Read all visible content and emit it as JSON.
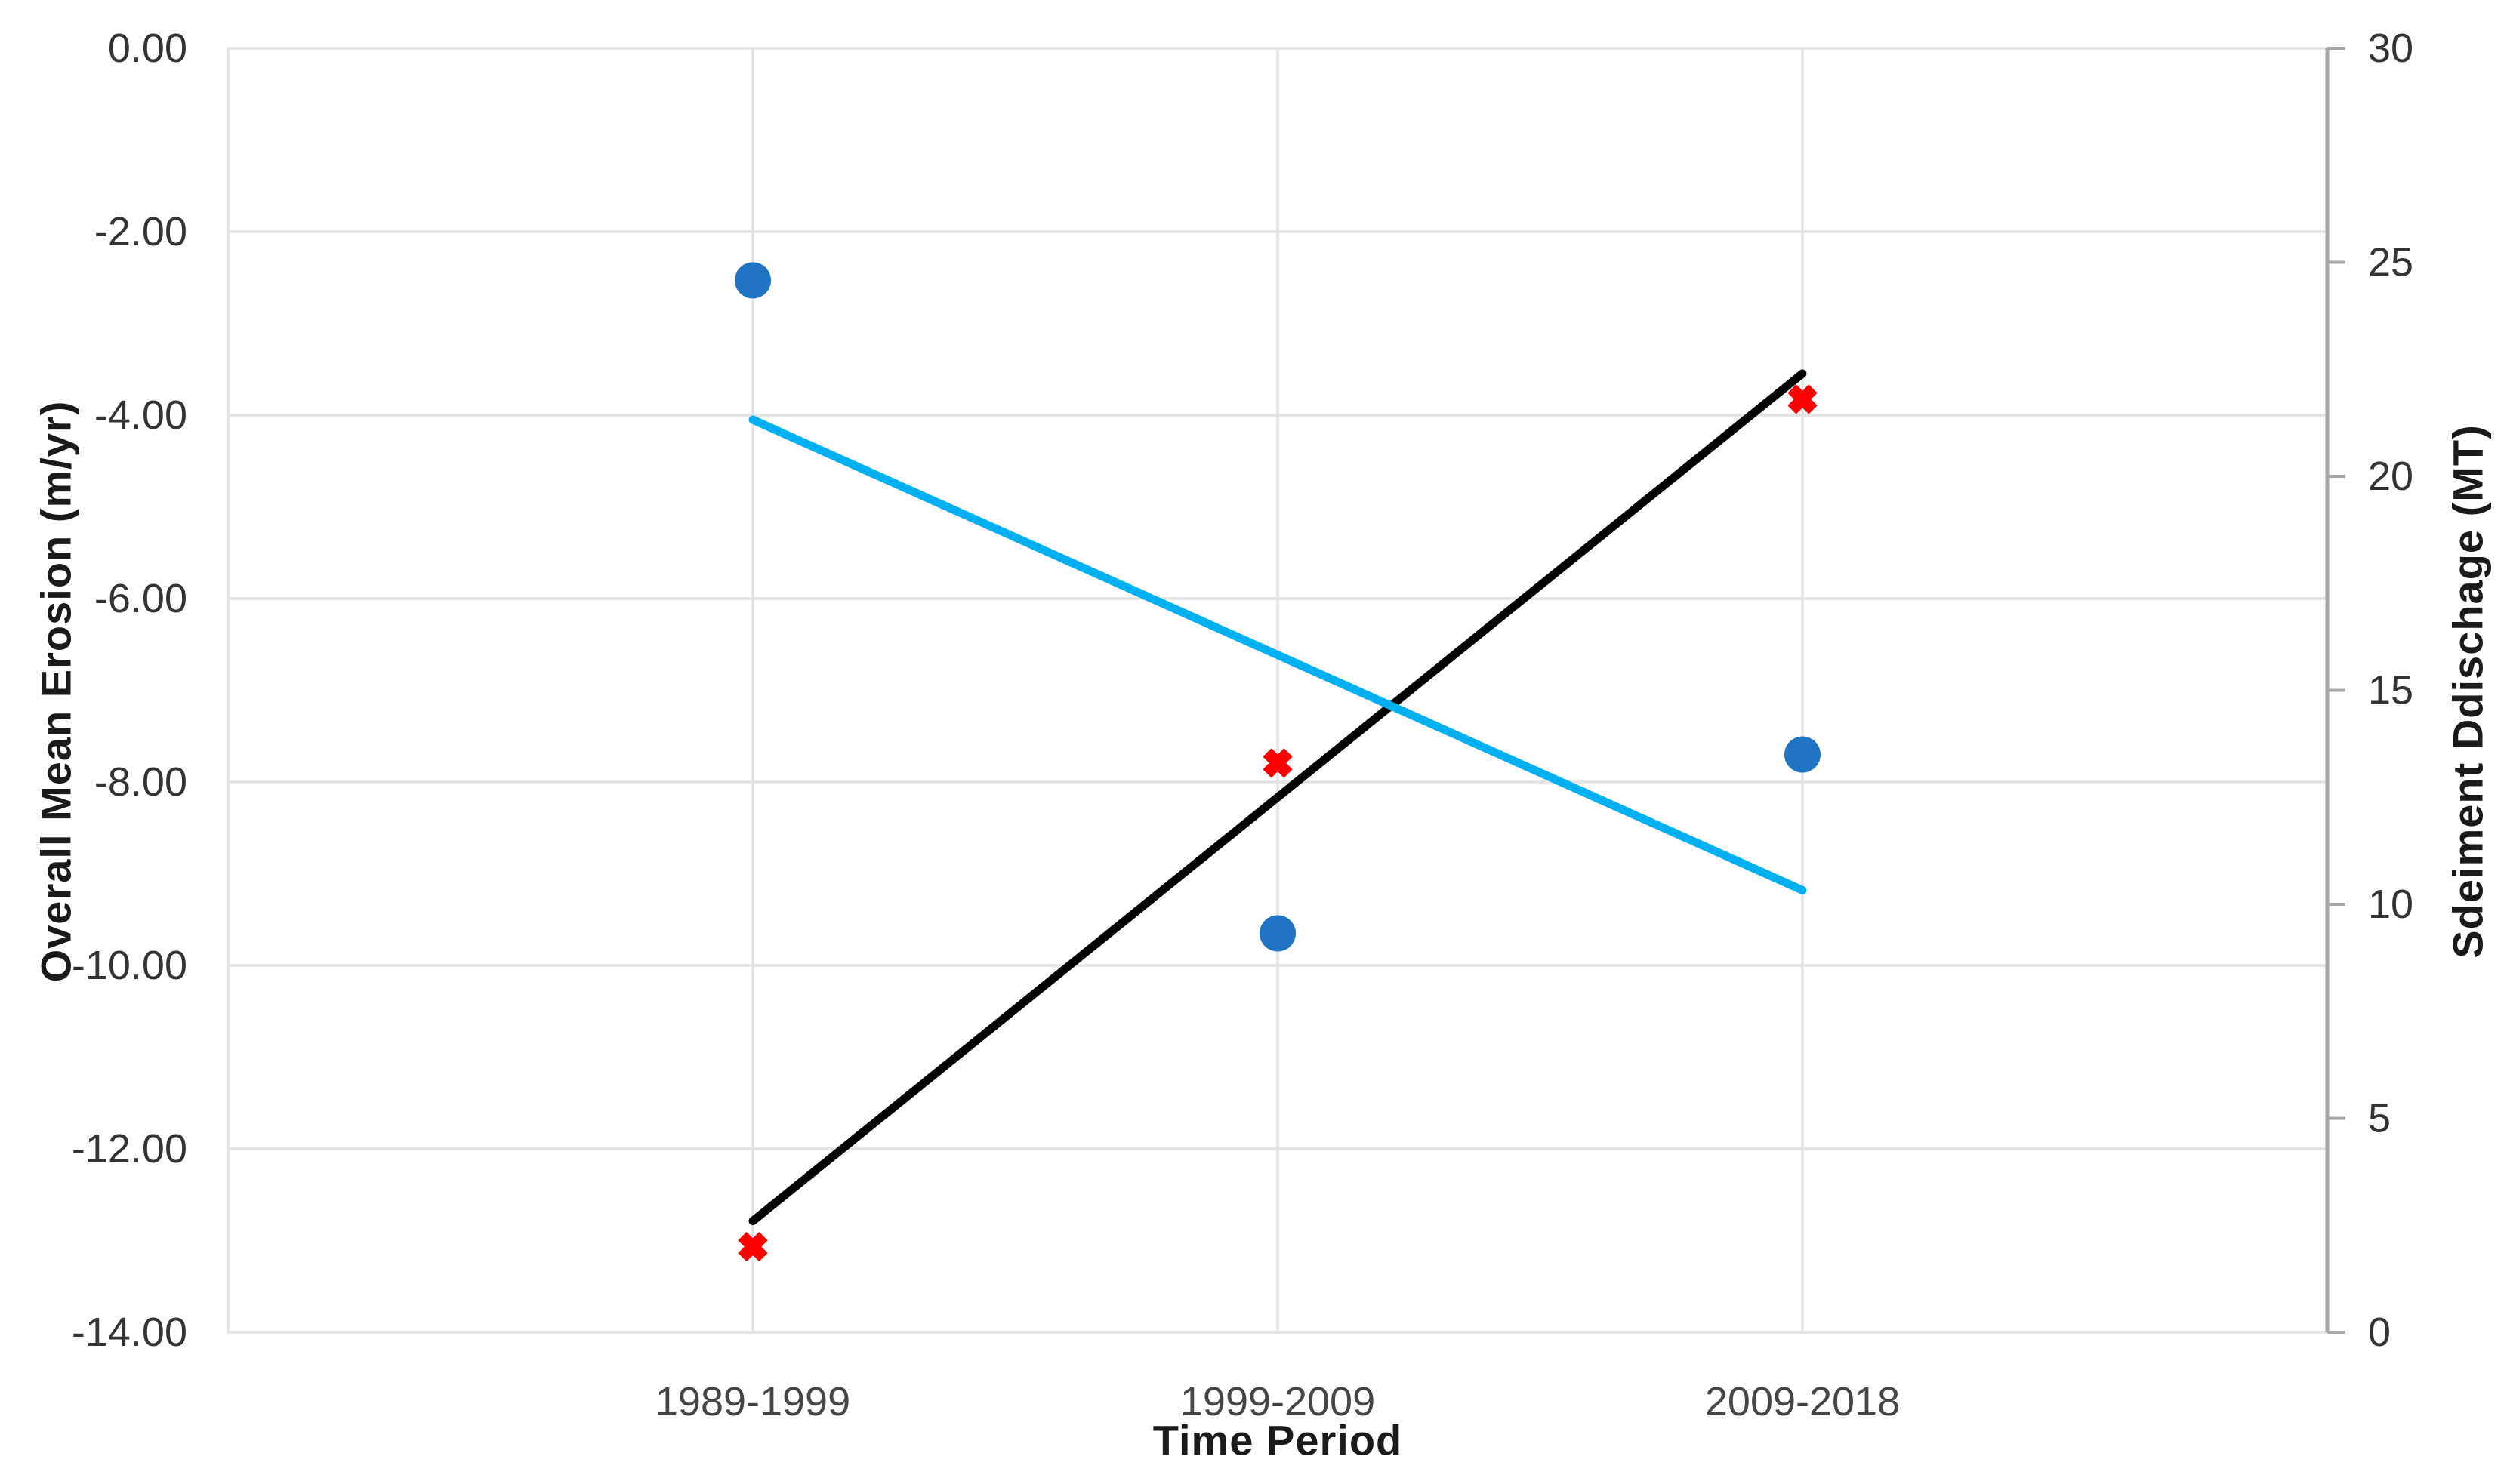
{
  "chart_data": {
    "type": "scatter",
    "title": "",
    "x_axis": {
      "title": "Time Period",
      "range": [
        0,
        4
      ],
      "categories": [
        {
          "label": "1989-1999",
          "x": 1
        },
        {
          "label": "1999-2009",
          "x": 2
        },
        {
          "label": "2009-2018",
          "x": 3
        }
      ]
    },
    "left_axis": {
      "title": "Overall Mean Erosion (m/yr)",
      "min": -14,
      "max": 0,
      "ticks": [
        {
          "label": "0.00",
          "value": 0
        },
        {
          "label": "-2.00",
          "value": -2
        },
        {
          "label": "-4.00",
          "value": -4
        },
        {
          "label": "-6.00",
          "value": -6
        },
        {
          "label": "-8.00",
          "value": -8
        },
        {
          "label": "-10.00",
          "value": -10
        },
        {
          "label": "-12.00",
          "value": -12
        },
        {
          "label": "-14.00",
          "value": -14
        }
      ]
    },
    "right_axis": {
      "title": "Sdeiment Ddischage (MT)",
      "min": 0,
      "max": 30,
      "ticks": [
        {
          "label": "30",
          "value": 30
        },
        {
          "label": "25",
          "value": 25
        },
        {
          "label": "20",
          "value": 20
        },
        {
          "label": "15",
          "value": 15
        },
        {
          "label": "10",
          "value": 10
        },
        {
          "label": "5",
          "value": 5
        },
        {
          "label": "0",
          "value": 0
        }
      ]
    },
    "series": [
      {
        "name": "Overall Mean Erosion (m/yr)",
        "axis": "left",
        "marker": "circle",
        "color": "#2073C2",
        "points": [
          {
            "x": 1,
            "y": -2.53
          },
          {
            "x": 2,
            "y": -9.65
          },
          {
            "x": 3,
            "y": -7.7
          }
        ]
      },
      {
        "name": "Sdeiment Ddischage (MT)",
        "axis": "right",
        "marker": "x",
        "color": "#FE0000",
        "points": [
          {
            "x": 1,
            "y": 2.0
          },
          {
            "x": 2,
            "y": 13.3
          },
          {
            "x": 3,
            "y": 21.8
          }
        ]
      }
    ],
    "trendlines": [
      {
        "series": "Sdeiment Ddischage (MT)",
        "axis": "right",
        "color": "#000000",
        "start": {
          "x": 1,
          "y": 2.6
        },
        "end": {
          "x": 3,
          "y": 22.4
        }
      },
      {
        "series": "Overall Mean Erosion (m/yr)",
        "axis": "left",
        "color": "#00B0F0",
        "start": {
          "x": 1,
          "y": -4.05
        },
        "end": {
          "x": 3,
          "y": -9.18
        }
      }
    ],
    "style": {
      "grid_on": true,
      "gridline_color": "#E2E2E2",
      "right_axis_line_color": "#A6A6A6",
      "tick_label_color": "#333333",
      "x_tick_label_color": "#454545",
      "background": "#FFFFFF"
    }
  }
}
